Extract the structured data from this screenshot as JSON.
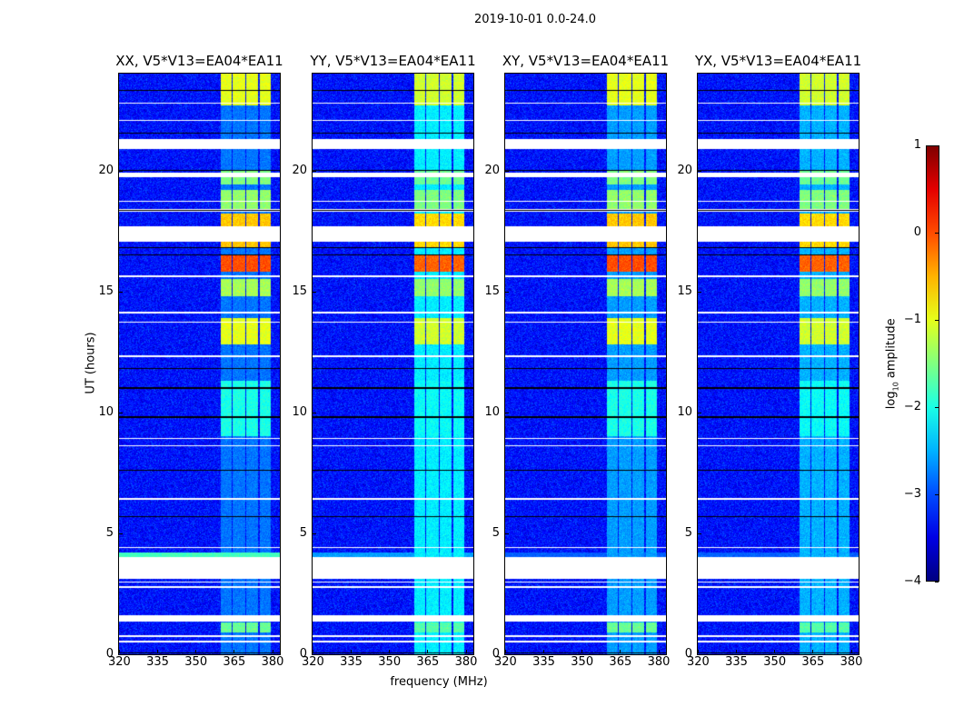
{
  "figure_title": "2019-10-01 0.0-24.0",
  "chart_data": {
    "type": "heatmap",
    "xlabel": "frequency (MHz)",
    "ylabel": "UT (hours)",
    "xlim": [
      320,
      383
    ],
    "ylim": [
      0,
      24
    ],
    "xticks": [
      320,
      335,
      350,
      365,
      380
    ],
    "yticks": [
      0,
      5,
      10,
      15,
      20
    ],
    "colorbar": {
      "label_prefix": "log",
      "label_sub": "10",
      "label_suffix": " amplitude",
      "range": [
        -4,
        1
      ],
      "ticks": [
        1,
        0,
        -1,
        -2,
        -3,
        -4
      ],
      "tick_labels": [
        "1",
        "0",
        "−1",
        "−2",
        "−3",
        "−4"
      ],
      "colormap": "jet"
    },
    "background_level": -3.3,
    "rfi_channels_mhz": [
      [
        360,
        364
      ],
      [
        364.5,
        369.3
      ],
      [
        369.9,
        374.3
      ],
      [
        375,
        379.6
      ]
    ],
    "rfi_intervals_hours": [
      {
        "range": [
          22.7,
          24
        ],
        "level": -1.0
      },
      {
        "range": [
          19.4,
          20.0
        ],
        "level": -1.5
      },
      {
        "range": [
          18.4,
          19.2
        ],
        "level": -1.4
      },
      {
        "range": [
          16.8,
          18.2
        ],
        "level": -0.6
      },
      {
        "range": [
          15.8,
          16.5
        ],
        "level": 0.0
      },
      {
        "range": [
          14.8,
          15.5
        ],
        "level": -1.3
      },
      {
        "range": [
          12.8,
          13.9
        ],
        "level": -1.0
      },
      {
        "range": [
          9.0,
          11.3
        ],
        "level": -2.0
      },
      {
        "range": [
          0.9,
          1.3
        ],
        "level": -1.6
      }
    ],
    "flagged_hours": [
      [
        3.1,
        4.0
      ],
      [
        2.95,
        3.0
      ],
      [
        2.75,
        2.8
      ],
      [
        1.35,
        1.6
      ],
      [
        0.72,
        0.77
      ],
      [
        0.5,
        0.55
      ],
      [
        4.4,
        4.45
      ],
      [
        20.9,
        21.3
      ],
      [
        19.7,
        19.9
      ],
      [
        18.7,
        18.75
      ],
      [
        18.3,
        18.4
      ],
      [
        17.05,
        17.7
      ],
      [
        15.6,
        15.65
      ],
      [
        14.1,
        14.15
      ],
      [
        13.7,
        13.75
      ],
      [
        12.3,
        12.35
      ],
      [
        8.9,
        8.95
      ],
      [
        8.6,
        8.65
      ],
      [
        6.4,
        6.45
      ],
      [
        22.75,
        22.8
      ],
      [
        22.05,
        22.1
      ]
    ],
    "missing_hours": [
      23.3,
      21.55,
      20.0,
      18.35,
      16.8,
      16.5,
      11.8,
      11.0,
      9.8,
      7.6,
      5.7,
      0.05
    ],
    "series": [
      {
        "name": "XX",
        "title": "XX, V5*V13=EA04*EA11",
        "rfi_floor": -2.8,
        "broadband": [
          {
            "range": [
              4.0,
              4.2
            ],
            "level": -1.8
          }
        ]
      },
      {
        "name": "YY",
        "title": "YY, V5*V13=EA04*EA11",
        "rfi_floor": -2.2,
        "broadband": [
          {
            "range": [
              4.0,
              4.2
            ],
            "level": -2.6
          }
        ]
      },
      {
        "name": "XY",
        "title": "XY, V5*V13=EA04*EA11",
        "rfi_floor": -2.6,
        "broadband": [
          {
            "range": [
              4.0,
              4.2
            ],
            "level": -2.9
          }
        ]
      },
      {
        "name": "YX",
        "title": "YX, V5*V13=EA04*EA11",
        "rfi_floor": -2.5,
        "broadband": [
          {
            "range": [
              4.0,
              4.2
            ],
            "level": -2.9
          }
        ]
      }
    ]
  }
}
